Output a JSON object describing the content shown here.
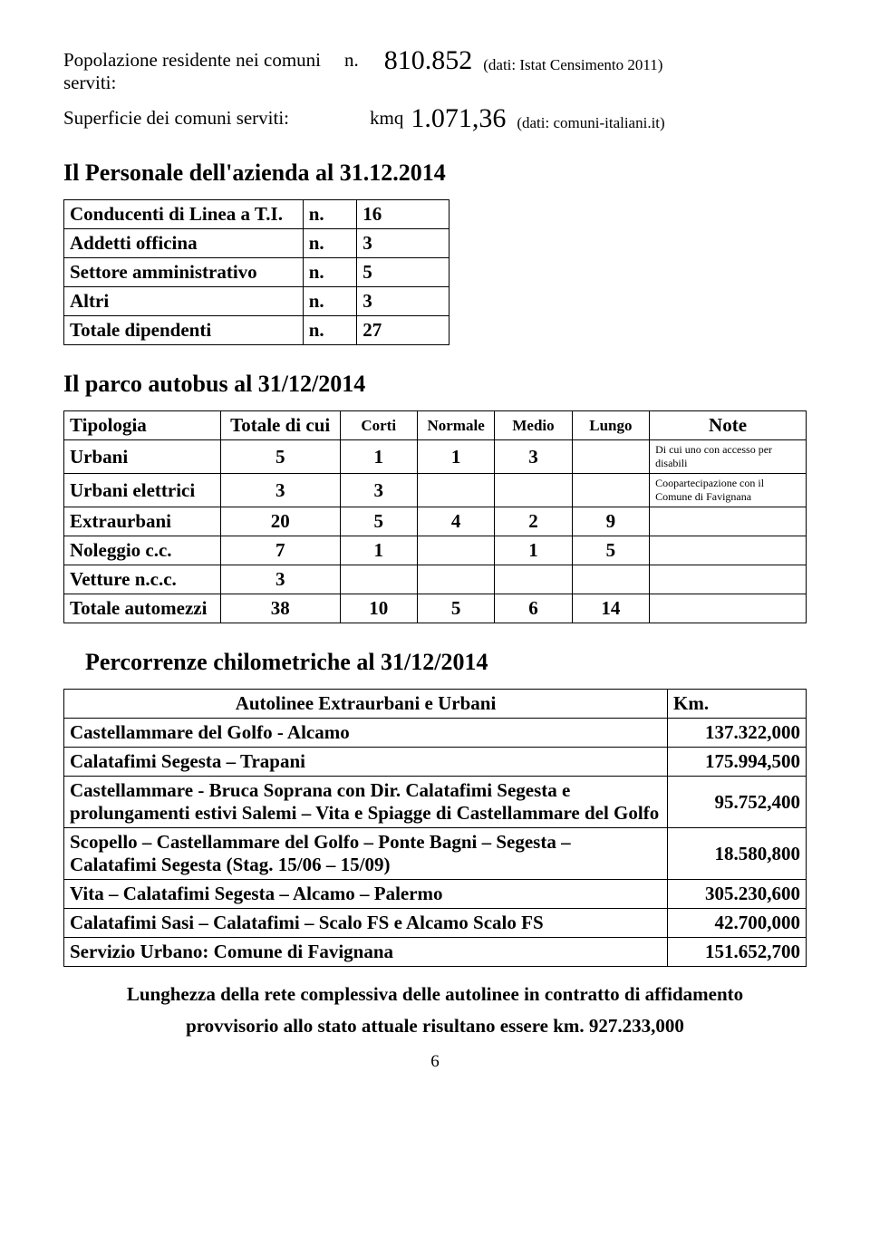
{
  "header": {
    "population_label": "Popolazione residente nei comuni serviti:",
    "population_prefix": "n.",
    "population_value": "810.852",
    "population_note": "(dati: Istat Censimento 2011)",
    "surface_label": "Superficie dei comuni serviti:",
    "surface_prefix": "kmq",
    "surface_value": "1.071,36",
    "surface_note": "(dati: comuni-italiani.it)"
  },
  "personnel": {
    "title": "Il Personale dell'azienda al 31.12.2014",
    "rows": [
      {
        "label": "Conducenti di Linea a T.I.",
        "unit": "n.",
        "val": "16"
      },
      {
        "label": "Addetti officina",
        "unit": "n.",
        "val": "3"
      },
      {
        "label": "Settore amministrativo",
        "unit": "n.",
        "val": "5"
      },
      {
        "label": "Altri",
        "unit": "n.",
        "val": "3"
      },
      {
        "label": "Totale dipendenti",
        "unit": "n.",
        "val": "27"
      }
    ]
  },
  "autobus": {
    "title": "Il parco autobus al 31/12/2014",
    "headers": [
      "Tipologia",
      "Totale di cui",
      "Corti",
      "Normale",
      "Medio",
      "Lungo",
      "Note"
    ],
    "rows": [
      {
        "label": "Urbani",
        "tot": "5",
        "corti": "1",
        "normale": "1",
        "medio": "3",
        "lungo": "",
        "note": "Di cui uno con accesso per disabili"
      },
      {
        "label": "Urbani elettrici",
        "tot": "3",
        "corti": "3",
        "normale": "",
        "medio": "",
        "lungo": "",
        "note": "Coopartecipazione con il Comune di Favignana"
      },
      {
        "label": "Extraurbani",
        "tot": "20",
        "corti": "5",
        "normale": "4",
        "medio": "2",
        "lungo": "9",
        "note": ""
      },
      {
        "label": "Noleggio c.c.",
        "tot": "7",
        "corti": "1",
        "normale": "",
        "medio": "1",
        "lungo": "5",
        "note": ""
      },
      {
        "label": "Vetture n.c.c.",
        "tot": "3",
        "corti": "",
        "normale": "",
        "medio": "",
        "lungo": "",
        "note": ""
      },
      {
        "label": "Totale automezzi",
        "tot": "38",
        "corti": "10",
        "normale": "5",
        "medio": "6",
        "lungo": "14",
        "note": ""
      }
    ]
  },
  "percorrenze": {
    "title": "Percorrenze chilometriche al 31/12/2014",
    "header_route": "Autolinee Extraurbani e Urbani",
    "header_km": "Km.",
    "rows": [
      {
        "route": "Castellammare del Golfo - Alcamo",
        "km": "137.322,000"
      },
      {
        "route": "Calatafimi Segesta – Trapani",
        "km": "175.994,500"
      },
      {
        "route": "Castellammare - Bruca Soprana con Dir. Calatafimi Segesta e prolungamenti estivi Salemi – Vita e Spiagge di Castellammare del Golfo",
        "km": "95.752,400"
      },
      {
        "route": "Scopello – Castellammare del Golfo – Ponte Bagni – Segesta – Calatafimi Segesta (Stag. 15/06 – 15/09)",
        "km": "18.580,800"
      },
      {
        "route": "Vita – Calatafimi Segesta – Alcamo – Palermo",
        "km": "305.230,600"
      },
      {
        "route": "Calatafimi Sasi – Calatafimi – Scalo FS e Alcamo Scalo FS",
        "km": "42.700,000"
      },
      {
        "route": "Servizio Urbano: Comune di Favignana",
        "km": "151.652,700"
      }
    ]
  },
  "footer": {
    "line1": "Lunghezza della rete complessiva delle autolinee in contratto di affidamento",
    "line2": "provvisorio allo stato attuale risultano essere km. 927.233,000",
    "page": "6"
  }
}
